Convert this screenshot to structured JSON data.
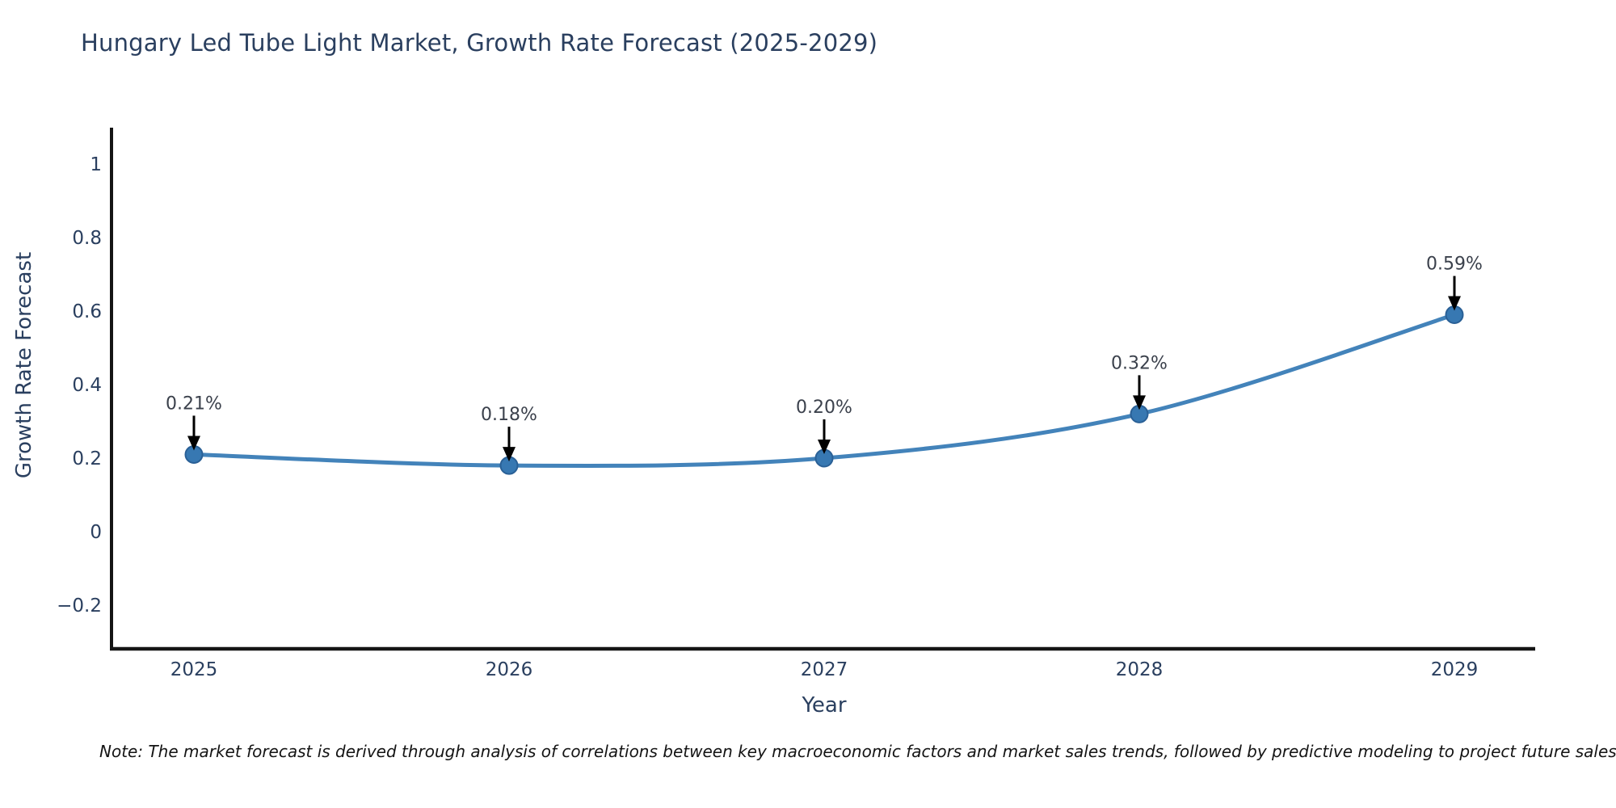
{
  "title": "Hungary Led Tube Light Market, Growth Rate Forecast (2025-2029)",
  "note": "Note: The market forecast is derived through analysis of correlations between key macroeconomic factors and market sales trends, followed by predictive modeling to project future sales.",
  "chart_data": {
    "type": "line",
    "title": "Hungary Led Tube Light Market, Growth Rate Forecast (2025-2029)",
    "xlabel": "Year",
    "ylabel": "Growth Rate Forecast",
    "categories": [
      "2025",
      "2026",
      "2027",
      "2028",
      "2029"
    ],
    "values": [
      0.21,
      0.18,
      0.2,
      0.32,
      0.59
    ],
    "point_labels": [
      "0.21%",
      "0.18%",
      "0.20%",
      "0.32%",
      "0.59%"
    ],
    "ytick_values": [
      1,
      0.8,
      0.6,
      0.4,
      0.2,
      0,
      -0.2
    ],
    "ytick_labels": [
      "1",
      "0.8",
      "0.6",
      "0.4",
      "0.2",
      "0",
      "−0.2"
    ],
    "ylim": [
      -0.32,
      1.1
    ],
    "grid": false,
    "legend": "none",
    "line_style": "spline",
    "markers": true,
    "annotations_have_arrows": true
  },
  "colors": {
    "title": "#2a3f5f",
    "tick": "#2a3f5f",
    "axis_title": "#2a3f5f",
    "annotation": "#3b414c",
    "axis_line": "#151515",
    "line": "#4383ba",
    "marker_fill": "#3778b2",
    "marker_stroke": "#2a6096",
    "arrow": "#000000",
    "background": "#ffffff"
  }
}
